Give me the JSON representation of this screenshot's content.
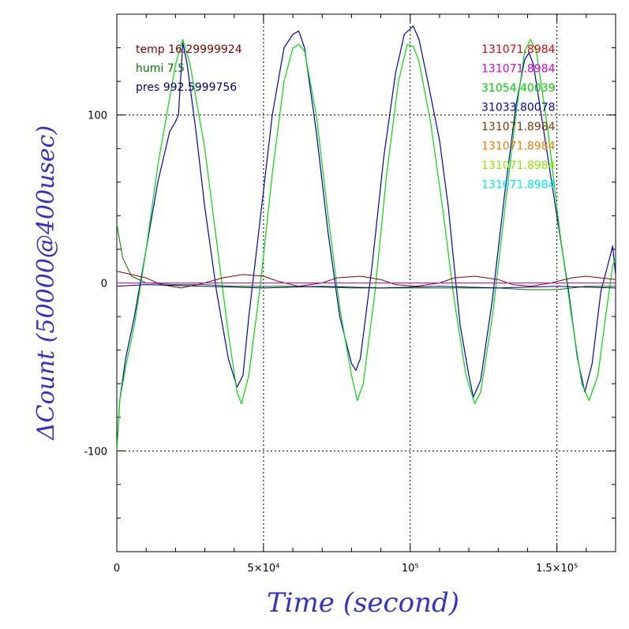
{
  "chart_data": {
    "type": "line",
    "xlabel": "Time (second)",
    "ylabel": "ΔCount (50000@400usec)",
    "xlim": [
      0,
      170000
    ],
    "ylim": [
      -160,
      160
    ],
    "xticks": [
      {
        "value": 0,
        "label": "0"
      },
      {
        "value": 50000,
        "label": "5×10⁴"
      },
      {
        "value": 100000,
        "label": "10⁵"
      },
      {
        "value": 150000,
        "label": "1.5×10⁵"
      }
    ],
    "yticks": [
      {
        "value": -100,
        "label": "-100"
      },
      {
        "value": 0,
        "label": "0"
      },
      {
        "value": 100,
        "label": "100"
      }
    ],
    "grid": true,
    "left_legend": [
      {
        "text": "temp 16.29999924",
        "color": "#8b0000"
      },
      {
        "text": "humi 7.5",
        "color": "#007700"
      },
      {
        "text": "pres 992.5999756",
        "color": "#00007f"
      }
    ],
    "right_legend": [
      {
        "text": "131071.8984",
        "color": "#ee0000"
      },
      {
        "text": "131071.8984",
        "color": "#dd00dd"
      },
      {
        "text": "31054.40039",
        "color": "#00cc00"
      },
      {
        "text": "31033.80078",
        "color": "#0000cc"
      },
      {
        "text": "131071.8984",
        "color": "#7a3b00"
      },
      {
        "text": "131071.8984",
        "color": "#ff7700"
      },
      {
        "text": "131071.8984",
        "color": "#88ee00"
      },
      {
        "text": "131071.8984",
        "color": "#00eeee"
      }
    ],
    "series": [
      {
        "color": "#0000cc",
        "width": 1.2,
        "x": [
          0,
          1000,
          3000,
          6000,
          10000,
          14000,
          18000,
          20000,
          21000,
          22500,
          24000,
          27000,
          30000,
          34000,
          38000,
          41000,
          43000,
          45000,
          49000,
          53000,
          57000,
          60000,
          62000,
          64000,
          68000,
          72000,
          76000,
          80000,
          81500,
          83000,
          87000,
          91000,
          95000,
          98000,
          101000,
          103000,
          106000,
          110000,
          113000,
          115000,
          117000,
          120000,
          121500,
          124000,
          128000,
          132000,
          136000,
          139000,
          140500,
          142000,
          146000,
          150000,
          154000,
          157000,
          159500,
          162000,
          165000,
          168000,
          169000,
          170000
        ],
        "y": [
          -100,
          -70,
          -45,
          -20,
          20,
          60,
          90,
          96,
          100,
          143,
          130,
          90,
          45,
          -5,
          -45,
          -62,
          -55,
          -20,
          40,
          100,
          140,
          148,
          150,
          140,
          90,
          30,
          -20,
          -48,
          -52,
          -45,
          10,
          75,
          125,
          148,
          153,
          145,
          120,
          85,
          45,
          10,
          -25,
          -55,
          -68,
          -58,
          -10,
          50,
          105,
          133,
          137,
          130,
          85,
          40,
          -5,
          -45,
          -65,
          -48,
          -5,
          15,
          22,
          5
        ]
      },
      {
        "color": "#00dd00",
        "width": 1.2,
        "x": [
          0,
          1000,
          3000,
          6000,
          10000,
          14000,
          18000,
          20000,
          22500,
          25000,
          30000,
          34000,
          38000,
          41000,
          42500,
          45000,
          49000,
          53000,
          57000,
          60000,
          62000,
          64000,
          68000,
          72000,
          76000,
          80000,
          82000,
          84000,
          88000,
          92000,
          96000,
          99000,
          101000,
          103000,
          107000,
          111000,
          115000,
          119000,
          122000,
          124000,
          128000,
          132000,
          136000,
          139000,
          141000,
          143000,
          147000,
          151000,
          155000,
          158500,
          161000,
          164000,
          167000,
          169000,
          170000
        ],
        "y": [
          -100,
          -70,
          -50,
          -25,
          20,
          70,
          110,
          130,
          145,
          130,
          80,
          25,
          -30,
          -65,
          -72,
          -55,
          0,
          65,
          120,
          140,
          142,
          138,
          100,
          40,
          -15,
          -55,
          -70,
          -60,
          -5,
          65,
          120,
          142,
          141,
          132,
          95,
          45,
          -10,
          -55,
          -72,
          -65,
          -20,
          40,
          100,
          138,
          145,
          138,
          90,
          30,
          -20,
          -60,
          -70,
          -55,
          -15,
          10,
          15
        ]
      },
      {
        "color": "#007700",
        "width": 1,
        "x": [
          0,
          2000,
          5000,
          10000,
          20000,
          30000,
          40000,
          60000,
          80000,
          100000,
          120000,
          130000,
          140000,
          150000,
          160000,
          170000
        ],
        "y": [
          35,
          15,
          4,
          0,
          -1,
          -1,
          -2,
          -2,
          -3,
          -3,
          -3,
          -3,
          -4,
          -4,
          -2,
          -2
        ]
      },
      {
        "color": "#8b0000",
        "width": 1,
        "x": [
          0,
          5000,
          10000,
          15000,
          22000,
          30000,
          36000,
          43000,
          50000,
          55000,
          62000,
          70000,
          75000,
          83000,
          90000,
          95000,
          102000,
          110000,
          115000,
          122000,
          130000,
          135000,
          141000,
          148000,
          155000,
          160000,
          165000,
          170000
        ],
        "y": [
          7,
          5,
          3,
          -1,
          -3,
          0,
          3,
          5,
          4,
          1,
          -2,
          0,
          3,
          4,
          2,
          -1,
          -2,
          0,
          3,
          4,
          2,
          -1,
          -2,
          0,
          3,
          4,
          3,
          2
        ]
      },
      {
        "color": "#dd00dd",
        "width": 1,
        "x": [
          0,
          170000
        ],
        "y": [
          0,
          0
        ]
      },
      {
        "color": "#000080",
        "width": 1,
        "x": [
          0,
          10000,
          30000,
          50000,
          70000,
          90000,
          110000,
          130000,
          150000,
          170000
        ],
        "y": [
          -2,
          -1,
          -2,
          -3,
          -2,
          -3,
          -2,
          -3,
          -2,
          -3
        ]
      }
    ]
  }
}
